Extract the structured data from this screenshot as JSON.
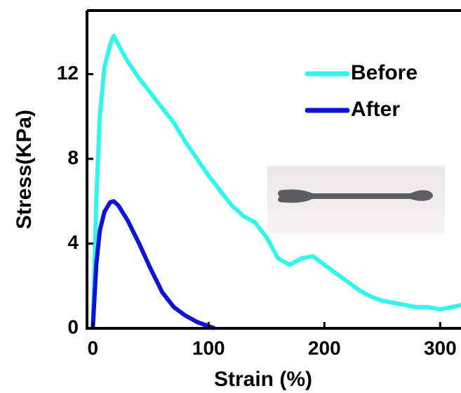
{
  "chart_data": {
    "type": "line",
    "x_label": "Strain (%)",
    "y_label": "Stress(KPa)",
    "xlim": [
      -5,
      318
    ],
    "ylim": [
      0,
      15
    ],
    "xticks": [
      0,
      100,
      200,
      300
    ],
    "yticks": [
      0,
      4,
      8,
      12
    ],
    "legend": "upper right",
    "series": [
      {
        "name": "Before",
        "color": "#33f5ee",
        "x": [
          0,
          3,
          6,
          10,
          15,
          18,
          22,
          30,
          40,
          50,
          60,
          70,
          80,
          90,
          100,
          110,
          120,
          130,
          140,
          150,
          160,
          170,
          180,
          190,
          200,
          210,
          220,
          230,
          240,
          250,
          260,
          270,
          280,
          290,
          300,
          310,
          318
        ],
        "values": [
          0,
          6,
          10,
          12.3,
          13.4,
          13.8,
          13.4,
          12.6,
          11.8,
          11.1,
          10.4,
          9.7,
          8.8,
          8.0,
          7.2,
          6.5,
          5.8,
          5.3,
          5.0,
          4.3,
          3.3,
          3.0,
          3.3,
          3.4,
          3.0,
          2.6,
          2.2,
          1.8,
          1.5,
          1.3,
          1.2,
          1.1,
          1.0,
          1.0,
          0.9,
          1.0,
          1.1
        ]
      },
      {
        "name": "After",
        "color": "#0a14d2",
        "x": [
          0,
          3,
          6,
          10,
          15,
          18,
          22,
          30,
          40,
          50,
          60,
          70,
          80,
          90,
          100,
          105
        ],
        "values": [
          0,
          3,
          4.6,
          5.5,
          5.95,
          6.0,
          5.8,
          5.1,
          4.0,
          2.8,
          1.7,
          1.0,
          0.6,
          0.3,
          0.1,
          0
        ]
      }
    ]
  }
}
